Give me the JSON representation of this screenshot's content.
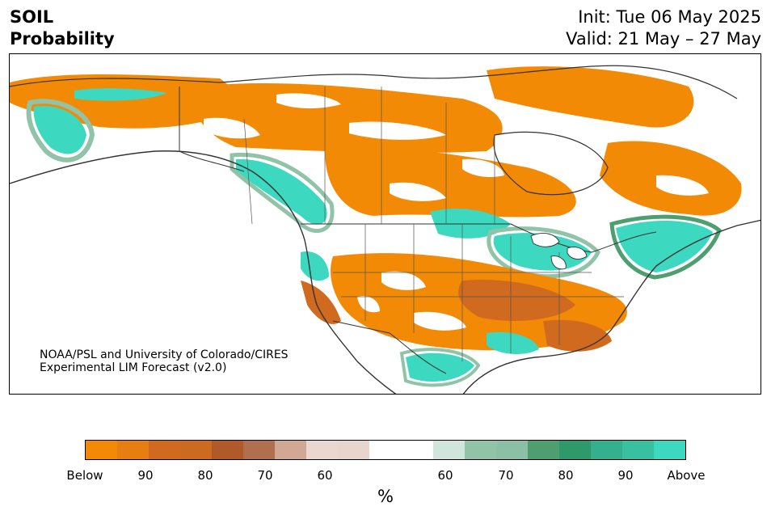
{
  "header": {
    "variable": "SOIL",
    "subtitle": "Probability",
    "init": "Init: Tue 06 May 2025",
    "valid": "Valid: 21 May – 27 May"
  },
  "credit": {
    "line1": "NOAA/PSL and University of Colorado/CIRES",
    "line2": "Experimental LIM Forecast (v2.0)"
  },
  "colorbar": {
    "unit": "%",
    "colors": [
      "#f28a06",
      "#e67e12",
      "#d06a1e",
      "#cc6a20",
      "#b05a2a",
      "#b07050",
      "#d1a894",
      "#ead8d0",
      "#e8d6cc",
      "#ffffff",
      "#ffffff",
      "#d0e6dc",
      "#90c3a8",
      "#8cc0a6",
      "#4f9e70",
      "#2e9a6c",
      "#34b08e",
      "#38c0a0",
      "#3cd8c0"
    ],
    "labels": [
      "Below",
      "90",
      "80",
      "70",
      "60",
      "60",
      "70",
      "80",
      "90",
      "Above"
    ]
  },
  "map": {
    "legend_colors": {
      "below": "#f28a06",
      "below_mid": "#d06a1e",
      "below_light": "#d1a894",
      "neutral": "#ffffff",
      "above_light": "#90c3a8",
      "above_mid": "#34b08e",
      "above": "#3cd8c0"
    }
  }
}
